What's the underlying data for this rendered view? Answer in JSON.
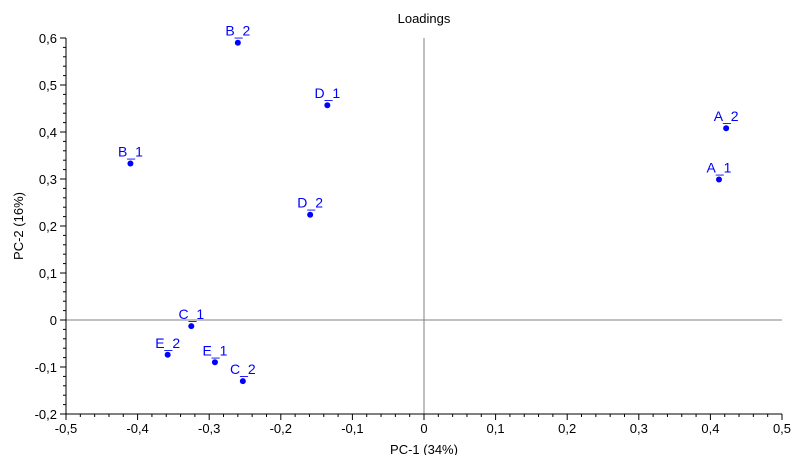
{
  "chart_data": {
    "type": "scatter",
    "title": "Loadings",
    "xlabel": "PC-1 (34%)",
    "ylabel": "PC-2 (16%)",
    "xlim": [
      -0.5,
      0.5
    ],
    "ylim": [
      -0.2,
      0.6
    ],
    "x_ticks": [
      "-0,5",
      "-0,4",
      "-0,3",
      "-0,2",
      "-0,1",
      "0",
      "0,1",
      "0,2",
      "0,3",
      "0,4",
      "0,5"
    ],
    "x_tick_values": [
      -0.5,
      -0.4,
      -0.3,
      -0.2,
      -0.1,
      0,
      0.1,
      0.2,
      0.3,
      0.4,
      0.5
    ],
    "y_ticks": [
      "-0,2",
      "-0,1",
      "0",
      "0,1",
      "0,2",
      "0,3",
      "0,4",
      "0,5",
      "0,6"
    ],
    "y_tick_values": [
      -0.2,
      -0.1,
      0,
      0.1,
      0.2,
      0.3,
      0.4,
      0.5,
      0.6
    ],
    "zero_lines": true,
    "grid": false,
    "point_color": "#0000ff",
    "axis_color": "#000000",
    "zero_line_color": "#808080",
    "points": [
      {
        "label": "B_2",
        "x": -0.26,
        "y": 0.59
      },
      {
        "label": "D_1",
        "x": -0.135,
        "y": 0.457
      },
      {
        "label": "B_1",
        "x": -0.41,
        "y": 0.333
      },
      {
        "label": "D_2",
        "x": -0.159,
        "y": 0.224
      },
      {
        "label": "A_2",
        "x": 0.422,
        "y": 0.408
      },
      {
        "label": "A_1",
        "x": 0.412,
        "y": 0.299
      },
      {
        "label": "C_1",
        "x": -0.325,
        "y": -0.013
      },
      {
        "label": "E_2",
        "x": -0.358,
        "y": -0.074
      },
      {
        "label": "E_1",
        "x": -0.292,
        "y": -0.09
      },
      {
        "label": "C_2",
        "x": -0.253,
        "y": -0.13
      }
    ]
  }
}
